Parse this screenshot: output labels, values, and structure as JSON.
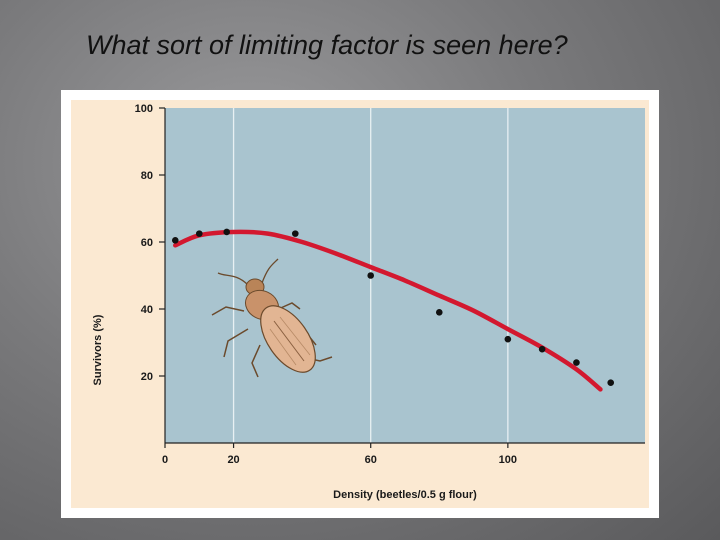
{
  "slide": {
    "title": "What sort of limiting factor is seen here?"
  },
  "chart_data": {
    "type": "scatter",
    "title": "",
    "xlabel": "Density (beetles/0.5 g flour)",
    "ylabel": "Survivors (%)",
    "xlim": [
      0,
      140
    ],
    "ylim": [
      0,
      100
    ],
    "x_ticks": [
      0,
      20,
      60,
      100
    ],
    "y_ticks": [
      20,
      40,
      60,
      80,
      100
    ],
    "grid": true,
    "points": [
      {
        "x": 3,
        "y": 60.5
      },
      {
        "x": 10,
        "y": 62.5
      },
      {
        "x": 18,
        "y": 63
      },
      {
        "x": 38,
        "y": 62.5
      },
      {
        "x": 60,
        "y": 50
      },
      {
        "x": 80,
        "y": 39
      },
      {
        "x": 100,
        "y": 31
      },
      {
        "x": 110,
        "y": 28
      },
      {
        "x": 120,
        "y": 24
      },
      {
        "x": 130,
        "y": 18
      }
    ],
    "trend_line": [
      {
        "x": 3,
        "y": 59
      },
      {
        "x": 10,
        "y": 62
      },
      {
        "x": 20,
        "y": 63
      },
      {
        "x": 30,
        "y": 62.5
      },
      {
        "x": 40,
        "y": 60
      },
      {
        "x": 50,
        "y": 56.5
      },
      {
        "x": 60,
        "y": 52.5
      },
      {
        "x": 70,
        "y": 48.5
      },
      {
        "x": 80,
        "y": 44
      },
      {
        "x": 90,
        "y": 39.5
      },
      {
        "x": 100,
        "y": 34
      },
      {
        "x": 110,
        "y": 28.5
      },
      {
        "x": 120,
        "y": 22
      },
      {
        "x": 127,
        "y": 16
      }
    ],
    "colors": {
      "plot_background": "#a9c4cf",
      "outer_background": "#fbe9d2",
      "curve": "#d3182f",
      "points": "#111111"
    },
    "illustration": "flour-beetle"
  }
}
